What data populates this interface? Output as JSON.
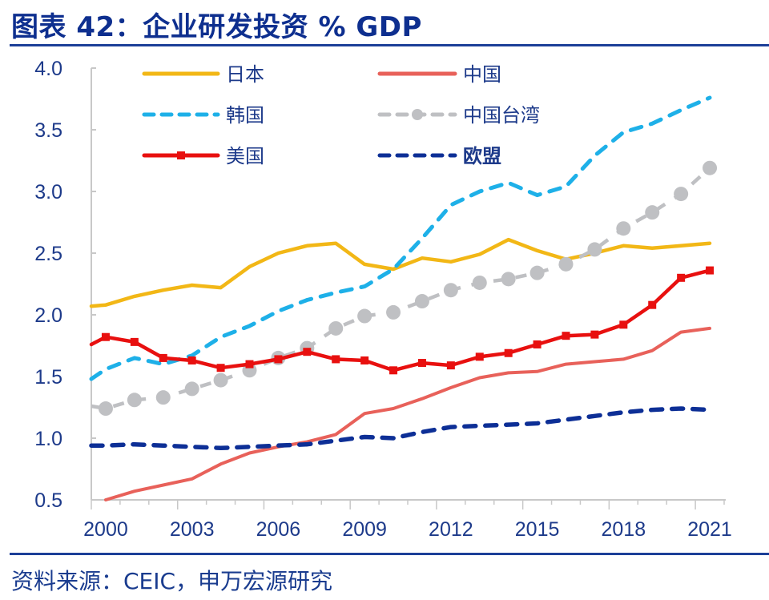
{
  "header": {
    "title": "图表 42：企业研发投资  % GDP"
  },
  "footer": {
    "source": "资料来源：CEIC，申万宏源研究"
  },
  "chart_data": {
    "type": "line",
    "title": "图表 42：企业研发投资  % GDP",
    "xlabel": "",
    "ylabel": "",
    "x": [
      2000,
      2001,
      2002,
      2003,
      2004,
      2005,
      2006,
      2007,
      2008,
      2009,
      2010,
      2011,
      2012,
      2013,
      2014,
      2015,
      2016,
      2017,
      2018,
      2019,
      2020,
      2021
    ],
    "x_tick_labels": [
      "2000",
      "2003",
      "2006",
      "2009",
      "2012",
      "2015",
      "2018",
      "2021"
    ],
    "x_tick_years": [
      2000,
      2003,
      2006,
      2009,
      2012,
      2015,
      2018,
      2021
    ],
    "y_tick_labels": [
      "0.5",
      "1.0",
      "1.5",
      "2.0",
      "2.5",
      "3.0",
      "3.5",
      "4.0"
    ],
    "y_ticks": [
      0.5,
      1.0,
      1.5,
      2.0,
      2.5,
      3.0,
      3.5,
      4.0
    ],
    "ylim": [
      0.5,
      4.0
    ],
    "grid": false,
    "legend_placement": "top-left, two columns",
    "series": [
      {
        "name": "日本",
        "color": "#f2b716",
        "style": "solid",
        "marker": "none",
        "start_value": 2.07,
        "values": [
          2.08,
          2.15,
          2.2,
          2.24,
          2.22,
          2.39,
          2.5,
          2.56,
          2.58,
          2.41,
          2.37,
          2.46,
          2.43,
          2.49,
          2.61,
          2.52,
          2.45,
          2.5,
          2.56,
          2.54,
          2.56,
          2.58
        ]
      },
      {
        "name": "中国",
        "color": "#e8615a",
        "style": "solid",
        "marker": "none",
        "start_value": null,
        "values": [
          0.5,
          0.57,
          0.62,
          0.67,
          0.79,
          0.88,
          0.93,
          0.97,
          1.03,
          1.2,
          1.24,
          1.32,
          1.41,
          1.49,
          1.53,
          1.54,
          1.6,
          1.62,
          1.64,
          1.71,
          1.86,
          1.89
        ]
      },
      {
        "name": "韩国",
        "color": "#1eb0e8",
        "style": "dashed",
        "marker": "none",
        "start_value": 1.48,
        "values": [
          1.56,
          1.65,
          1.6,
          1.67,
          1.82,
          1.91,
          2.03,
          2.12,
          2.18,
          2.23,
          2.37,
          2.62,
          2.89,
          3.0,
          3.07,
          2.97,
          3.04,
          3.29,
          3.48,
          3.55,
          3.66,
          3.76
        ]
      },
      {
        "name": "中国台湾",
        "color": "#bfc0c3",
        "style": "dashed",
        "marker": "circle",
        "start_value": 1.26,
        "values": [
          1.24,
          1.31,
          1.33,
          1.4,
          1.47,
          1.55,
          1.65,
          1.73,
          1.89,
          1.99,
          2.02,
          2.11,
          2.2,
          2.26,
          2.29,
          2.34,
          2.41,
          2.53,
          2.7,
          2.83,
          2.98,
          3.19
        ]
      },
      {
        "name": "美国",
        "color": "#e8100f",
        "style": "solid",
        "marker": "square",
        "start_value": 1.76,
        "values": [
          1.82,
          1.78,
          1.65,
          1.63,
          1.57,
          1.6,
          1.64,
          1.7,
          1.64,
          1.63,
          1.55,
          1.61,
          1.59,
          1.66,
          1.69,
          1.76,
          1.83,
          1.84,
          1.92,
          2.08,
          2.3,
          2.36
        ]
      },
      {
        "name": "欧盟",
        "color": "#0d2f96",
        "style": "dashed",
        "marker": "none",
        "label_bold": true,
        "start_value": 0.94,
        "values": [
          0.94,
          0.95,
          0.94,
          0.93,
          0.92,
          0.93,
          0.94,
          0.95,
          0.98,
          1.01,
          1.0,
          1.05,
          1.09,
          1.1,
          1.11,
          1.12,
          1.15,
          1.18,
          1.21,
          1.23,
          1.24,
          1.23
        ]
      }
    ]
  }
}
